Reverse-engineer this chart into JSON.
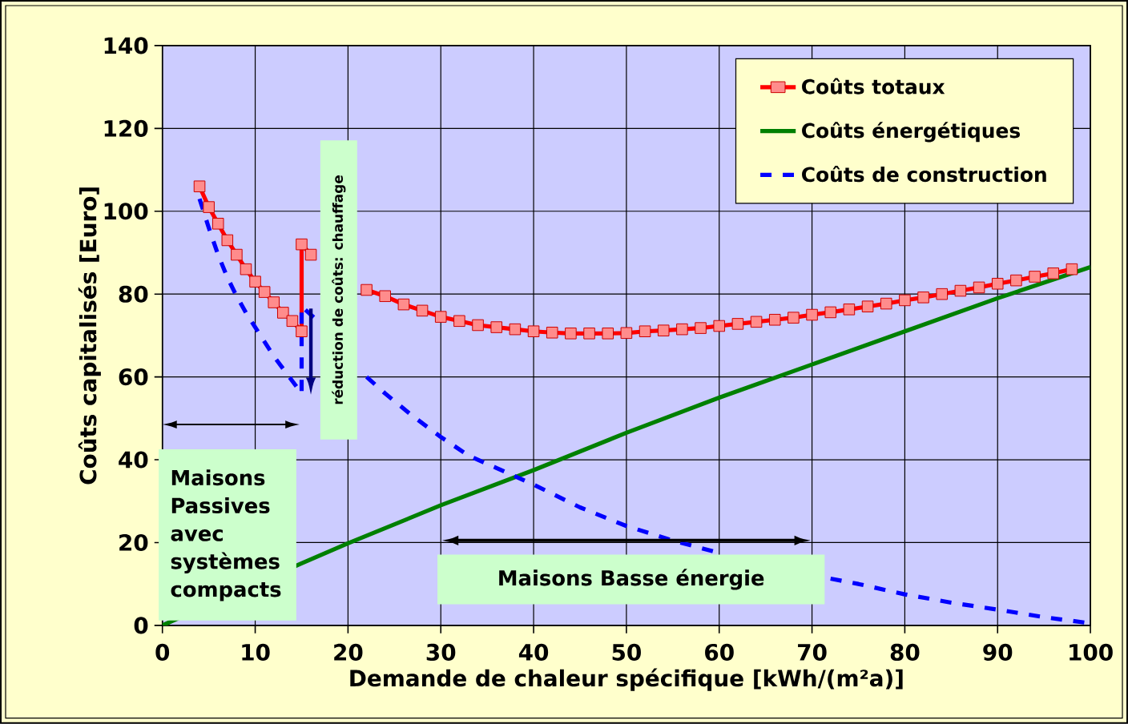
{
  "chart_data": {
    "type": "line",
    "xlabel": "Demande de chaleur spécifique [kWh/(m²a)]",
    "ylabel": "Coûts capitalisés [Euro]",
    "xlim": [
      0,
      100
    ],
    "ylim": [
      0,
      140
    ],
    "xticks": [
      0,
      10,
      20,
      30,
      40,
      50,
      60,
      70,
      80,
      90,
      100
    ],
    "yticks": [
      0,
      20,
      40,
      60,
      80,
      100,
      120,
      140
    ],
    "grid": true,
    "legend": "top right",
    "series": [
      {
        "name": "Coûts totaux",
        "color": "#ff0000",
        "marker": "square",
        "line_style": "solid",
        "x": [
          4,
          5,
          6,
          7,
          8,
          9,
          10,
          11,
          12,
          13,
          14,
          15,
          15,
          16,
          18,
          20,
          22,
          24,
          26,
          28,
          30,
          32,
          34,
          36,
          38,
          40,
          42,
          44,
          46,
          48,
          50,
          52,
          54,
          56,
          58,
          60,
          62,
          64,
          66,
          68,
          70,
          72,
          74,
          76,
          78,
          80,
          82,
          84,
          86,
          88,
          90,
          92,
          94,
          96,
          98
        ],
        "values": [
          106,
          101,
          97,
          93,
          89.5,
          86,
          83,
          80.5,
          78,
          75.5,
          73.5,
          71,
          92,
          89.5,
          null,
          null,
          81,
          79.5,
          77.5,
          76,
          74.5,
          73.5,
          72.5,
          72,
          71.5,
          71,
          70.7,
          70.5,
          70.5,
          70.5,
          70.6,
          71,
          71.2,
          71.5,
          71.8,
          72.3,
          72.8,
          73.3,
          73.8,
          74.3,
          75,
          75.6,
          76.3,
          77,
          77.7,
          78.5,
          79.2,
          80,
          80.8,
          81.6,
          82.5,
          83.3,
          84.2,
          85,
          86
        ]
      },
      {
        "name": "Coûts énergétiques",
        "color": "#008000",
        "marker": "none",
        "line_style": "solid",
        "x": [
          0,
          15,
          20,
          30,
          40,
          50,
          60,
          70,
          80,
          90,
          100
        ],
        "values": [
          0,
          15,
          19.8,
          29,
          37.5,
          46.5,
          55,
          63,
          71,
          79,
          86.5
        ]
      },
      {
        "name": "Coûts de construction",
        "color": "#0000ff",
        "marker": "none",
        "line_style": "dashed",
        "x": [
          4,
          5,
          6,
          7,
          8,
          9,
          10,
          11,
          12,
          13,
          14,
          15,
          15,
          16.5,
          19,
          22,
          24,
          27,
          30,
          33,
          36,
          40,
          45,
          50,
          55,
          60,
          65,
          72,
          75,
          80,
          85,
          90,
          95,
          100
        ],
        "values": [
          103,
          96,
          89.5,
          84,
          79.5,
          75.5,
          72,
          68.5,
          65,
          62,
          59,
          56,
          77,
          74,
          null,
          60,
          56,
          50.5,
          45.5,
          41,
          38,
          34,
          28.5,
          24,
          20.5,
          17.5,
          null,
          11.3,
          10,
          7.5,
          5.5,
          3.8,
          2,
          0.5
        ]
      }
    ],
    "annotations": [
      "Maisons Passives avec systèmes compacts",
      "réduction de coûts: chauffage",
      "Maisons Basse énergie"
    ]
  }
}
